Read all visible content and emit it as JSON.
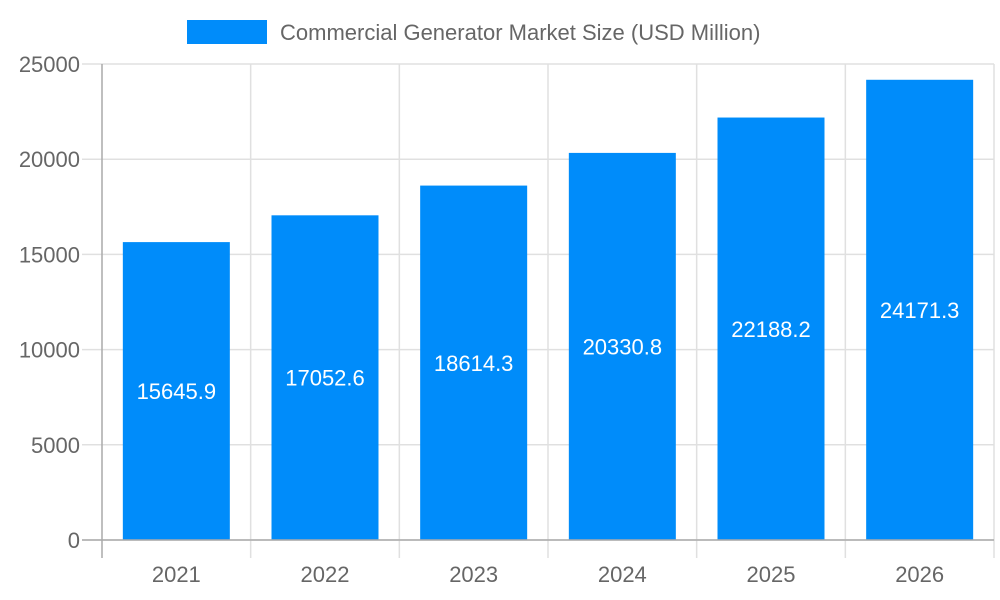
{
  "chart_data": {
    "type": "bar",
    "title": "",
    "xlabel": "",
    "ylabel": "",
    "categories": [
      "2021",
      "2022",
      "2023",
      "2024",
      "2025",
      "2026"
    ],
    "series": [
      {
        "name": "Commercial Generator Market Size (USD Million)",
        "values": [
          15645.9,
          17052.6,
          18614.3,
          20330.8,
          22188.2,
          24171.3
        ],
        "color": "#008CFA"
      }
    ],
    "ylim": [
      0,
      25000
    ],
    "yticks": [
      0,
      5000,
      10000,
      15000,
      20000,
      25000
    ],
    "grid": true,
    "legend": "top",
    "data_labels": true
  }
}
